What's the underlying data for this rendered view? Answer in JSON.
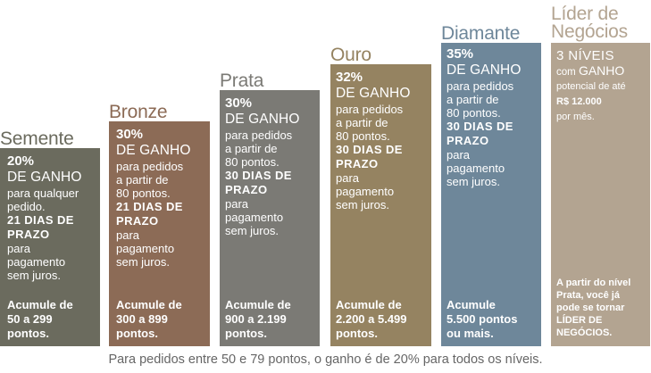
{
  "tiers": [
    {
      "name": "Semente",
      "color": "#6b6b5e",
      "percent": "20%",
      "gain": "DE GANHO",
      "min_lines": [
        "para qualquer",
        "pedido."
      ],
      "prazo_lines": [
        "21 DIAS DE",
        "PRAZO"
      ],
      "payment_lines": [
        "para",
        "pagamento",
        "sem juros."
      ],
      "accumulate_lines": [
        "Acumule de",
        "50 a 299",
        "pontos."
      ]
    },
    {
      "name": "Bronze",
      "color": "#8c6b56",
      "percent": "30%",
      "gain": "DE GANHO",
      "min_lines": [
        "para pedidos",
        "a partir de",
        "80 pontos."
      ],
      "prazo_lines": [
        "21 DIAS DE",
        "PRAZO"
      ],
      "payment_lines": [
        "para",
        "pagamento",
        "sem juros."
      ],
      "accumulate_lines": [
        "Acumule de",
        "300 a 899",
        "pontos."
      ]
    },
    {
      "name": "Prata",
      "color": "#7b7a75",
      "percent": "30%",
      "gain": "DE GANHO",
      "min_lines": [
        "para pedidos",
        "a partir de",
        "80 pontos."
      ],
      "prazo_lines": [
        "30 DIAS DE",
        "PRAZO"
      ],
      "payment_lines": [
        "para",
        "pagamento",
        "sem juros."
      ],
      "accumulate_lines": [
        "Acumule de",
        "900 a 2.199",
        "pontos."
      ]
    },
    {
      "name": "Ouro",
      "color": "#958361",
      "percent": "32%",
      "gain": "DE GANHO",
      "min_lines": [
        "para pedidos",
        "a partir de",
        "80 pontos."
      ],
      "prazo_lines": [
        "30 DIAS DE",
        "PRAZO"
      ],
      "payment_lines": [
        "para",
        "pagamento",
        "sem juros."
      ],
      "accumulate_lines": [
        "Acumule de",
        "2.200 a 5.499",
        "pontos."
      ]
    },
    {
      "name": "Diamante",
      "color": "#6e879a",
      "percent": "35%",
      "gain": "DE GANHO",
      "min_lines": [
        "para pedidos",
        "a partir de",
        "80 pontos."
      ],
      "prazo_lines": [
        "30 DIAS DE",
        "PRAZO"
      ],
      "payment_lines": [
        "para",
        "pagamento",
        "sem juros."
      ],
      "accumulate_lines": [
        "Acumule",
        "5.500 pontos",
        "ou mais."
      ]
    }
  ],
  "lider": {
    "name_lines": [
      "Líder de",
      "Negócios"
    ],
    "color": "#b3a491",
    "levels": "3 NÍVEIS",
    "com": "com",
    "ganho": "GANHO",
    "potencial": "potencial de até",
    "amount": "R$ 12.000",
    "per_month": "por mês.",
    "bottom_lines": [
      "A partir do nível",
      "Prata, você já",
      "pode se tornar",
      "LÍDER DE",
      "NEGÓCIOS."
    ]
  },
  "footer": "Para pedidos entre 50 e 79 pontos, o ganho é de 20% para todos os níveis."
}
